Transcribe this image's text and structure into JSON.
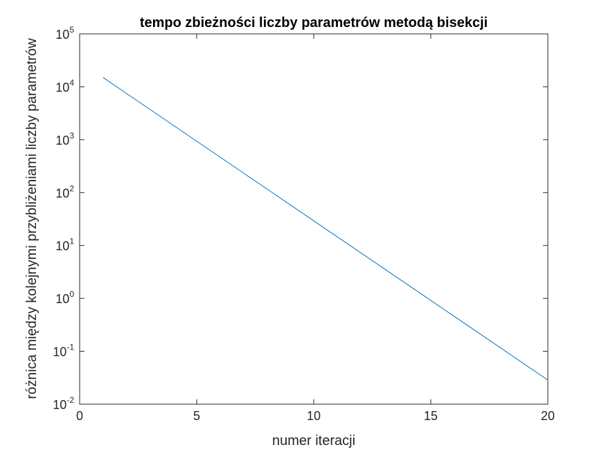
{
  "chart_data": {
    "type": "line",
    "title": "tempo zbieżności liczby parametrów metodą bisekcji",
    "xlabel": "numer iteracji",
    "ylabel": "różnica między kolejnymi przybliżeniami liczby parametrów",
    "xlim": [
      0,
      20
    ],
    "ylim": [
      0.01,
      100000
    ],
    "yscale": "log",
    "grid": false,
    "x_ticks": [
      0,
      5,
      10,
      15,
      20
    ],
    "y_ticks": [
      {
        "base": "10",
        "exp": "-2",
        "value": 0.01
      },
      {
        "base": "10",
        "exp": "-1",
        "value": 0.1
      },
      {
        "base": "10",
        "exp": "0",
        "value": 1
      },
      {
        "base": "10",
        "exp": "1",
        "value": 10
      },
      {
        "base": "10",
        "exp": "2",
        "value": 100
      },
      {
        "base": "10",
        "exp": "3",
        "value": 1000
      },
      {
        "base": "10",
        "exp": "4",
        "value": 10000
      },
      {
        "base": "10",
        "exp": "5",
        "value": 100000
      }
    ],
    "series": [
      {
        "color": "#0072BD",
        "x": [
          1,
          2,
          3,
          4,
          5,
          6,
          7,
          8,
          9,
          10,
          11,
          12,
          13,
          14,
          15,
          16,
          17,
          18,
          19,
          20
        ],
        "y": [
          15000,
          7500,
          3750,
          1875,
          937.5,
          468.75,
          234.375,
          117.1875,
          58.59375,
          29.296875,
          14.6484375,
          7.32421875,
          3.662109375,
          1.8310546875,
          0.91552734375,
          0.457763671875,
          0.2288818359375,
          0.11444091796875,
          0.057220458984375,
          0.0286102294921875
        ]
      }
    ]
  }
}
